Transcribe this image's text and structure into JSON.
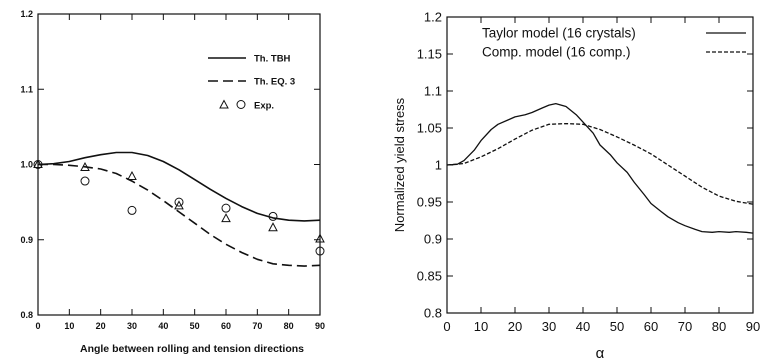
{
  "chart_data": [
    {
      "type": "line",
      "title": "",
      "xlabel": "Angle between rolling and tension directions",
      "ylabel": "",
      "xlim": [
        0,
        90
      ],
      "ylim": [
        0.8,
        1.2
      ],
      "x_ticks": [
        "0",
        "10",
        "20",
        "30",
        "40",
        "50",
        "60",
        "70",
        "80",
        "90"
      ],
      "y_ticks": [
        "0.8",
        "0.9",
        "1.0",
        "1.1",
        "1.2"
      ],
      "legend_position": "top-right",
      "grid": false,
      "series": [
        {
          "name": "Th. TBH",
          "kind": "line",
          "style": "solid",
          "x": [
            0,
            5,
            10,
            15,
            20,
            25,
            30,
            35,
            40,
            45,
            50,
            55,
            60,
            65,
            70,
            75,
            80,
            85,
            90
          ],
          "y": [
            1.0,
            1.001,
            1.004,
            1.009,
            1.013,
            1.016,
            1.016,
            1.012,
            1.004,
            0.993,
            0.98,
            0.967,
            0.955,
            0.944,
            0.935,
            0.929,
            0.926,
            0.925,
            0.926
          ]
        },
        {
          "name": "Th. EQ. 3",
          "kind": "line",
          "style": "dashed",
          "x": [
            0,
            5,
            10,
            15,
            20,
            25,
            30,
            35,
            40,
            45,
            50,
            55,
            60,
            65,
            70,
            75,
            80,
            85,
            90
          ],
          "y": [
            1.0,
            1.0,
            0.999,
            0.997,
            0.994,
            0.988,
            0.978,
            0.966,
            0.952,
            0.937,
            0.922,
            0.907,
            0.894,
            0.883,
            0.874,
            0.868,
            0.866,
            0.865,
            0.866
          ]
        },
        {
          "name": "Exp.",
          "kind": "points",
          "marker": "triangle",
          "x": [
            0,
            15,
            30,
            45,
            60,
            75,
            90
          ],
          "y": [
            1.0,
            0.996,
            0.984,
            0.945,
            0.928,
            0.916,
            0.901
          ]
        },
        {
          "name": "",
          "kind": "points",
          "marker": "circle",
          "x": [
            0,
            15,
            30,
            45,
            60,
            75,
            90
          ],
          "y": [
            1.0,
            0.978,
            0.939,
            0.95,
            0.942,
            0.931,
            0.885
          ]
        }
      ]
    },
    {
      "type": "line",
      "title": "",
      "xlabel": "α",
      "ylabel": "Normalized yield stress",
      "xlim": [
        0,
        90
      ],
      "ylim": [
        0.8,
        1.2
      ],
      "x_ticks": [
        "0",
        "10",
        "20",
        "30",
        "40",
        "50",
        "60",
        "70",
        "80",
        "90"
      ],
      "y_ticks": [
        "0.8",
        "0.85",
        "0.9",
        "0.95",
        "1",
        "1.05",
        "1.1",
        "1.15",
        "1.2"
      ],
      "legend_position": "top-right",
      "grid": false,
      "series": [
        {
          "name": "Taylor model (16 crystals)",
          "style": "solid",
          "x": [
            0,
            3,
            5,
            8,
            10,
            13,
            15,
            18,
            20,
            23,
            25,
            28,
            30,
            32,
            35,
            38,
            40,
            43,
            45,
            48,
            50,
            53,
            55,
            58,
            60,
            63,
            65,
            68,
            70,
            73,
            75,
            78,
            80,
            83,
            85,
            88,
            90
          ],
          "y": [
            1.0,
            1.001,
            1.006,
            1.02,
            1.033,
            1.048,
            1.055,
            1.061,
            1.065,
            1.068,
            1.071,
            1.077,
            1.081,
            1.083,
            1.079,
            1.068,
            1.058,
            1.043,
            1.027,
            1.014,
            1.003,
            0.99,
            0.977,
            0.96,
            0.948,
            0.937,
            0.93,
            0.922,
            0.918,
            0.913,
            0.91,
            0.909,
            0.91,
            0.909,
            0.91,
            0.909,
            0.908
          ]
        },
        {
          "name": "Comp. model (16 comp.)",
          "style": "dashed",
          "x": [
            0,
            5,
            10,
            15,
            20,
            25,
            30,
            35,
            40,
            45,
            50,
            55,
            60,
            65,
            70,
            75,
            80,
            85,
            90
          ],
          "y": [
            1.0,
            1.002,
            1.011,
            1.022,
            1.035,
            1.047,
            1.055,
            1.056,
            1.055,
            1.048,
            1.038,
            1.027,
            1.015,
            1.0,
            0.985,
            0.97,
            0.958,
            0.951,
            0.947
          ]
        }
      ]
    }
  ]
}
